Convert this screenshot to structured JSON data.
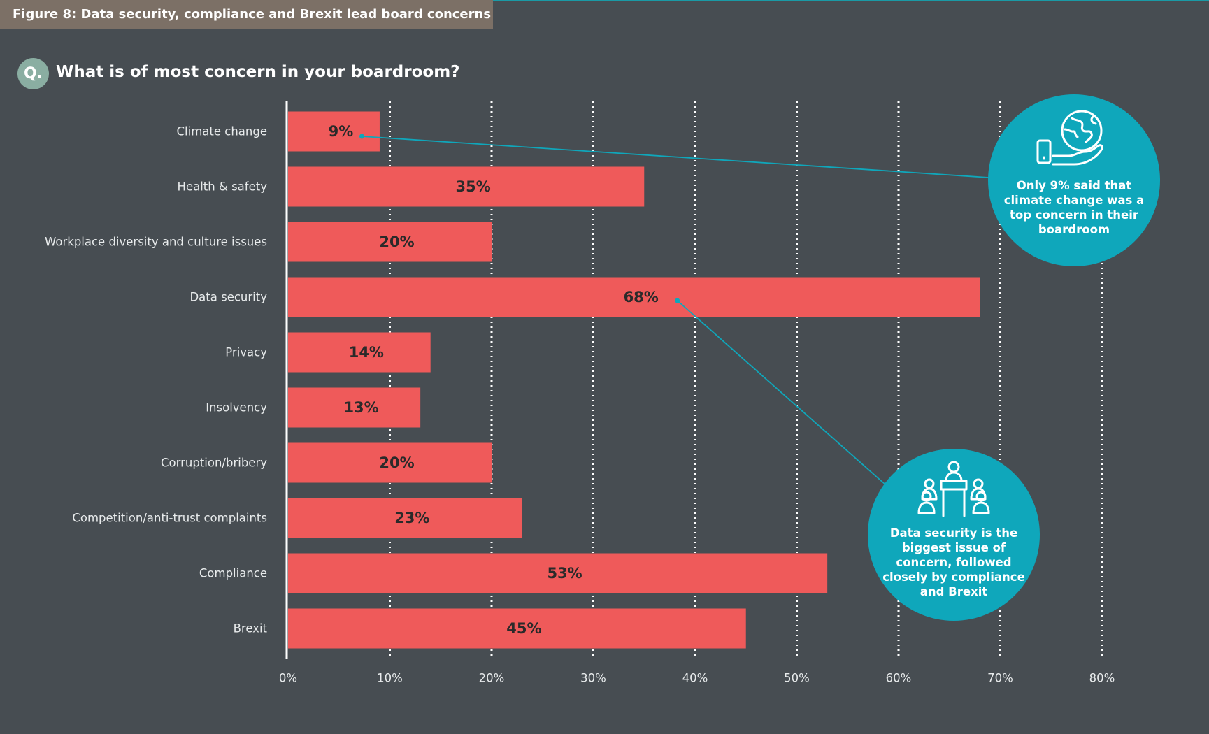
{
  "header": {
    "figure_title": "Figure 8: Data security, compliance and Brexit lead board concerns",
    "q_badge": "Q.",
    "question": "What is of most concern in your boardroom?"
  },
  "colors": {
    "background": "#474d52",
    "bar": "#ef5a5a",
    "accent": "#0fa7bb",
    "title_band": "#7c7066",
    "q_badge": "#8aaea2"
  },
  "chart_data": {
    "type": "bar",
    "orientation": "horizontal",
    "categories": [
      "Climate change",
      "Health & safety",
      "Workplace diversity and culture issues",
      "Data security",
      "Privacy",
      "Insolvency",
      "Corruption/bribery",
      "Competition/anti-trust complaints",
      "Compliance",
      "Brexit"
    ],
    "values": [
      9,
      35,
      20,
      68,
      14,
      13,
      20,
      23,
      53,
      45
    ],
    "value_labels": [
      "9%",
      "35%",
      "20%",
      "68%",
      "14%",
      "13%",
      "20%",
      "23%",
      "53%",
      "45%"
    ],
    "xlim": [
      0,
      80
    ],
    "x_ticks": [
      0,
      10,
      20,
      30,
      40,
      50,
      60,
      70,
      80
    ],
    "x_tick_labels": [
      "0%",
      "10%",
      "20%",
      "30%",
      "40%",
      "50%",
      "60%",
      "70%",
      "80%"
    ],
    "grid": "dotted vertical"
  },
  "callouts": {
    "climate": {
      "icon": "globe-in-hand-icon",
      "text": "Only 9% said that climate change was a top concern in their boardroom"
    },
    "data_security": {
      "icon": "boardroom-meeting-icon",
      "text": "Data security is the biggest issue of concern, followed closely by compliance and Brexit"
    }
  }
}
